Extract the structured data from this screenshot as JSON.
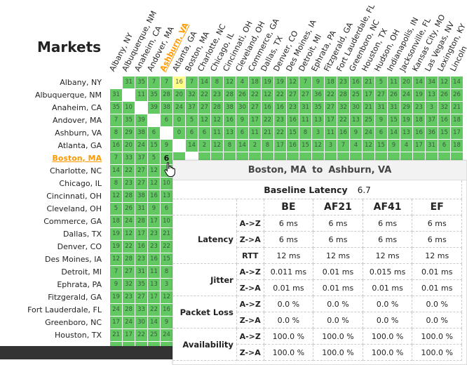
{
  "title": "Markets",
  "markets": [
    "Albany, NY",
    "Albuquerque, NM",
    "Anaheim, CA",
    "Andover, MA",
    "Ashburn, VA",
    "Atlanta, GA",
    "Boston, MA",
    "Charlotte, NC",
    "Chicago, IL",
    "Cincinnati, OH",
    "Cleveland, OH",
    "Commerce, GA",
    "Dallas, TX",
    "Denver, CO",
    "Des Moines, IA",
    "Detroit, MI",
    "Ephrata, PA",
    "Fitzgerald, GA",
    "Fort Lauderdale, FL",
    "Greenboro, NC",
    "Houston, TX",
    "Hudson, OH",
    "Indianapolis, IN",
    "Jacksonville, FL",
    "Kansas City, MO",
    "Las Vegas, NV",
    "Lexington, KY",
    "Lincoln"
  ],
  "visible_rows": 21,
  "active_row": 6,
  "active_col": 4,
  "highlight_cell": [
    0,
    5
  ],
  "colors": {
    "cell": "#62c862",
    "highlight": "#ffff88",
    "active": "#ff9900",
    "footer": "#333333"
  },
  "matrix": [
    [
      null,
      31,
      35,
      7,
      7,
      16,
      7,
      14,
      8,
      12,
      4,
      18,
      19,
      19,
      12,
      7,
      9,
      18,
      23,
      16,
      21,
      5,
      11,
      20,
      14,
      34,
      12,
      14
    ],
    [
      31,
      null,
      11,
      35,
      28,
      20,
      32,
      22,
      23,
      28,
      26,
      22,
      12,
      22,
      27,
      27,
      36,
      22,
      28,
      25,
      17,
      27,
      26,
      24,
      19,
      13,
      26,
      26
    ],
    [
      35,
      10,
      null,
      39,
      38,
      24,
      37,
      27,
      28,
      38,
      30,
      27,
      16,
      16,
      23,
      31,
      35,
      27,
      32,
      30,
      21,
      31,
      31,
      29,
      23,
      3,
      32,
      21
    ],
    [
      7,
      35,
      39,
      null,
      6,
      0,
      5,
      12,
      12,
      16,
      9,
      17,
      22,
      23,
      16,
      11,
      13,
      17,
      22,
      13,
      25,
      9,
      15,
      19,
      18,
      37,
      16,
      18
    ],
    [
      8,
      29,
      38,
      6,
      null,
      0,
      6,
      6,
      11,
      13,
      6,
      11,
      21,
      22,
      15,
      8,
      3,
      11,
      16,
      9,
      24,
      6,
      14,
      13,
      16,
      36,
      15,
      17
    ],
    [
      16,
      20,
      24,
      15,
      9,
      null,
      14,
      2,
      12,
      8,
      14,
      2,
      8,
      17,
      16,
      15,
      12,
      3,
      7,
      4,
      12,
      15,
      9,
      4,
      17,
      31,
      6,
      18
    ],
    [
      7,
      33,
      37,
      5,
      6
    ],
    [
      14,
      22,
      27,
      12
    ],
    [
      8,
      23,
      27,
      12,
      10
    ],
    [
      12,
      28,
      38,
      16,
      13
    ],
    [
      5,
      26,
      31,
      9,
      6
    ],
    [
      18,
      24,
      28,
      17,
      10
    ],
    [
      19,
      12,
      17,
      23,
      21
    ],
    [
      19,
      22,
      16,
      23,
      22
    ],
    [
      12,
      28,
      23,
      16,
      15
    ],
    [
      7,
      27,
      31,
      11,
      8
    ],
    [
      9,
      32,
      35,
      13,
      3
    ],
    [
      19,
      23,
      27,
      17,
      12
    ],
    [
      24,
      28,
      33,
      22,
      16
    ],
    [
      17,
      24,
      30,
      14,
      9
    ],
    [
      21,
      17,
      22,
      25,
      24
    ]
  ],
  "tooltip": {
    "from": "Boston, MA",
    "to_word": "to",
    "to": "Ashburn, VA",
    "baseline_label": "Baseline Latency",
    "baseline_value": "6.7",
    "classes": [
      "BE",
      "AF21",
      "AF41",
      "EF"
    ],
    "groups": [
      {
        "label": "Latency",
        "rows": [
          {
            "dir": "A->Z",
            "values": [
              "6 ms",
              "6 ms",
              "6 ms",
              "6 ms"
            ]
          },
          {
            "dir": "Z->A",
            "values": [
              "6 ms",
              "6 ms",
              "6 ms",
              "6 ms"
            ]
          },
          {
            "dir": "RTT",
            "values": [
              "12 ms",
              "12 ms",
              "12 ms",
              "12 ms"
            ]
          }
        ]
      },
      {
        "label": "Jitter",
        "rows": [
          {
            "dir": "A->Z",
            "values": [
              "0.011 ms",
              "0.01 ms",
              "0.015 ms",
              "0.01 ms"
            ]
          },
          {
            "dir": "Z->A",
            "values": [
              "0.01 ms",
              "0.01 ms",
              "0.01 ms",
              "0.01 ms"
            ]
          }
        ]
      },
      {
        "label": "Packet Loss",
        "rows": [
          {
            "dir": "A->Z",
            "values": [
              "0.0 %",
              "0.0 %",
              "0.0 %",
              "0.0 %"
            ]
          },
          {
            "dir": "Z->A",
            "values": [
              "0.0 %",
              "0.0 %",
              "0.0 %",
              "0.0 %"
            ]
          }
        ]
      },
      {
        "label": "Availability",
        "rows": [
          {
            "dir": "A->Z",
            "values": [
              "100.0 %",
              "100.0 %",
              "100.0 %",
              "100.0 %"
            ]
          },
          {
            "dir": "Z->A",
            "values": [
              "100.0 %",
              "100.0 %",
              "100.0 %",
              "100.0 %"
            ]
          }
        ]
      }
    ]
  }
}
